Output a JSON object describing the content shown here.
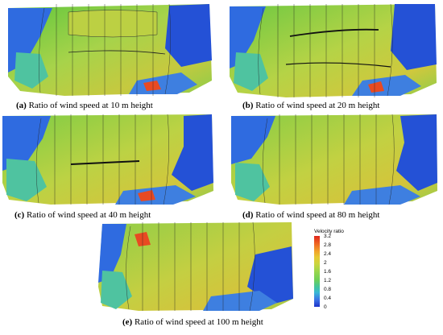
{
  "panels": [
    {
      "id": "a",
      "label": "(a)",
      "caption": " Ratio of wind speed at 10 m height"
    },
    {
      "id": "b",
      "label": "(b)",
      "caption": " Ratio of wind speed at 20 m height"
    },
    {
      "id": "c",
      "label": "(c)",
      "caption": " Ratio of wind speed at 40 m height"
    },
    {
      "id": "d",
      "label": "(d)",
      "caption": " Ratio of wind speed at 80 m height"
    },
    {
      "id": "e",
      "label": "(e)",
      "caption": " Ratio of wind speed at 100 m height"
    }
  ],
  "legend": {
    "title": "Velocity ratio",
    "ticks": [
      "3.2",
      "2.8",
      "2.4",
      "2",
      "1.6",
      "1.2",
      "0.8",
      "0.4",
      "0"
    ]
  },
  "colors": {
    "low": "#1d33c9",
    "mid": "#8ed24c",
    "high": "#e0261c",
    "terrain_green": "#9bd34a",
    "terrain_yellow": "#c9c83c"
  }
}
